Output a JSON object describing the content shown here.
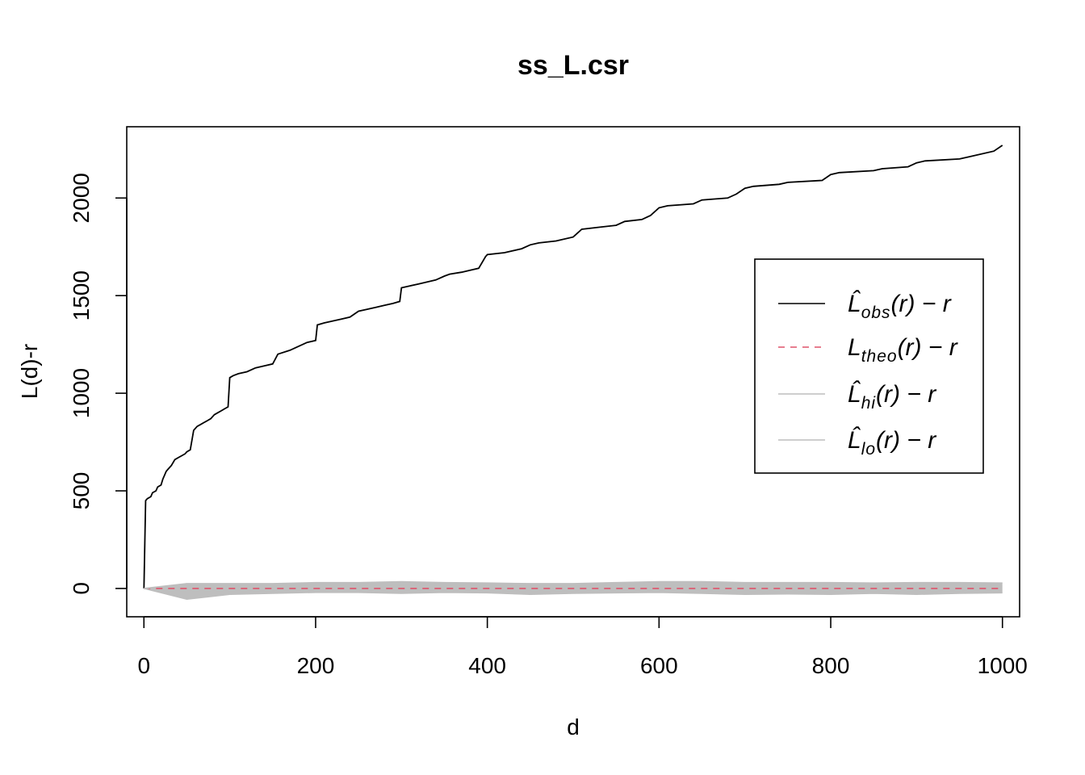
{
  "chart_data": {
    "type": "line",
    "title": "ss_L.csr",
    "xlabel": "d",
    "ylabel": "L(d)-r",
    "xlim": [
      -20,
      1020
    ],
    "ylim": [
      -145,
      2365
    ],
    "xticks": [
      0,
      200,
      400,
      600,
      800,
      1000
    ],
    "yticks": [
      0,
      500,
      1000,
      1500,
      2000
    ],
    "xtick_labels": [
      "0",
      "200",
      "400",
      "600",
      "800",
      "1000"
    ],
    "ytick_labels": [
      "0",
      "500",
      "1000",
      "1500",
      "2000"
    ],
    "legend_position": "right",
    "series": [
      {
        "name": "L̂obs(r) − r",
        "legend_main": "L̂",
        "legend_sub": "obs",
        "legend_tail": "(r) − r",
        "color": "#000000",
        "style": "solid",
        "x": [
          0,
          2,
          4,
          8,
          10,
          14,
          16,
          20,
          22,
          26,
          28,
          32,
          36,
          40,
          44,
          48,
          50,
          54,
          58,
          62,
          66,
          70,
          74,
          78,
          82,
          86,
          90,
          94,
          98,
          100,
          104,
          110,
          120,
          130,
          140,
          150,
          156,
          170,
          180,
          190,
          200,
          202,
          210,
          220,
          230,
          240,
          250,
          260,
          270,
          280,
          290,
          298,
          300,
          310,
          320,
          330,
          340,
          350,
          356,
          370,
          380,
          390,
          398,
          400,
          420,
          440,
          450,
          460,
          480,
          500,
          510,
          530,
          550,
          560,
          580,
          590,
          600,
          610,
          640,
          650,
          680,
          690,
          700,
          710,
          740,
          750,
          790,
          800,
          810,
          850,
          860,
          890,
          900,
          910,
          950,
          960,
          990,
          1000
        ],
        "y": [
          0,
          450,
          460,
          470,
          490,
          500,
          520,
          530,
          560,
          600,
          610,
          630,
          660,
          670,
          680,
          690,
          700,
          710,
          810,
          830,
          840,
          850,
          860,
          870,
          890,
          900,
          910,
          920,
          930,
          1080,
          1090,
          1100,
          1110,
          1130,
          1140,
          1150,
          1200,
          1220,
          1240,
          1260,
          1270,
          1350,
          1360,
          1370,
          1380,
          1390,
          1420,
          1430,
          1440,
          1450,
          1460,
          1470,
          1540,
          1550,
          1560,
          1570,
          1580,
          1600,
          1610,
          1620,
          1630,
          1640,
          1700,
          1710,
          1720,
          1740,
          1760,
          1770,
          1780,
          1800,
          1840,
          1850,
          1860,
          1880,
          1890,
          1910,
          1950,
          1960,
          1970,
          1990,
          2000,
          2020,
          2050,
          2060,
          2070,
          2080,
          2090,
          2120,
          2130,
          2140,
          2150,
          2160,
          2180,
          2190,
          2200,
          2210,
          2240,
          2270
        ]
      },
      {
        "name": "Ltheo(r) − r",
        "legend_main": "L",
        "legend_sub": "theo",
        "legend_tail": "(r) − r",
        "color": "#df536b",
        "style": "dashed",
        "x": [
          0,
          1000
        ],
        "y": [
          0,
          0
        ]
      },
      {
        "name": "L̂hi(r) − r",
        "legend_main": "L̂",
        "legend_sub": "hi",
        "legend_tail": "(r) − r",
        "color": "#bebebe",
        "style": "solid",
        "x": [
          0,
          50,
          100,
          150,
          200,
          250,
          300,
          350,
          400,
          450,
          500,
          550,
          600,
          650,
          700,
          750,
          800,
          850,
          900,
          950,
          1000
        ],
        "y": [
          0,
          25,
          25,
          25,
          30,
          30,
          35,
          30,
          28,
          25,
          25,
          30,
          35,
          35,
          30,
          30,
          30,
          28,
          30,
          30,
          28
        ]
      },
      {
        "name": "L̂lo(r) − r",
        "legend_main": "L̂",
        "legend_sub": "lo",
        "legend_tail": "(r) − r",
        "color": "#bebebe",
        "style": "solid",
        "x": [
          0,
          50,
          100,
          150,
          200,
          250,
          300,
          350,
          400,
          450,
          500,
          550,
          600,
          650,
          700,
          750,
          800,
          850,
          900,
          950,
          1000
        ],
        "y": [
          0,
          -55,
          -30,
          -25,
          -20,
          -20,
          -25,
          -20,
          -22,
          -30,
          -25,
          -22,
          -20,
          -25,
          -30,
          -28,
          -30,
          -25,
          -30,
          -25,
          -22
        ]
      }
    ]
  }
}
